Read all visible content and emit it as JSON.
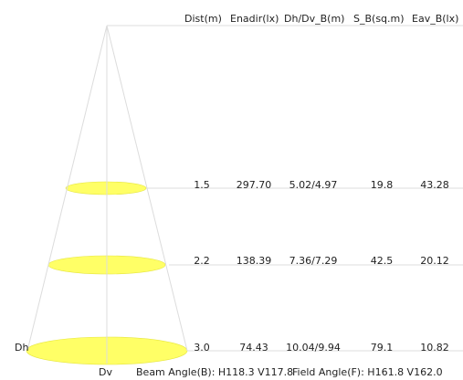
{
  "colors": {
    "spot_fill": "#ffff66",
    "spot_stroke": "#e6e640",
    "line": "#dcdcdc",
    "text": "#222222"
  },
  "table": {
    "headers": [
      "Dist(m)",
      "Enadir(lx)",
      "Dh/Dv_B(m)",
      "S_B(sq.m)",
      "Eav_B(lx)"
    ],
    "rows": [
      [
        "1.5",
        "297.70",
        "5.02/4.97",
        "19.8",
        "43.28"
      ],
      [
        "2.2",
        "138.39",
        "7.36/7.29",
        "42.5",
        "20.12"
      ],
      [
        "3.0",
        "74.43",
        "10.04/9.94",
        "79.1",
        "10.82"
      ]
    ]
  },
  "labels": {
    "dh": "Dh",
    "dv": "Dv"
  },
  "footer": {
    "beam": "Beam Angle(B): H118.3 V117.8",
    "field": "Field Angle(F): H161.8 V162.0"
  }
}
